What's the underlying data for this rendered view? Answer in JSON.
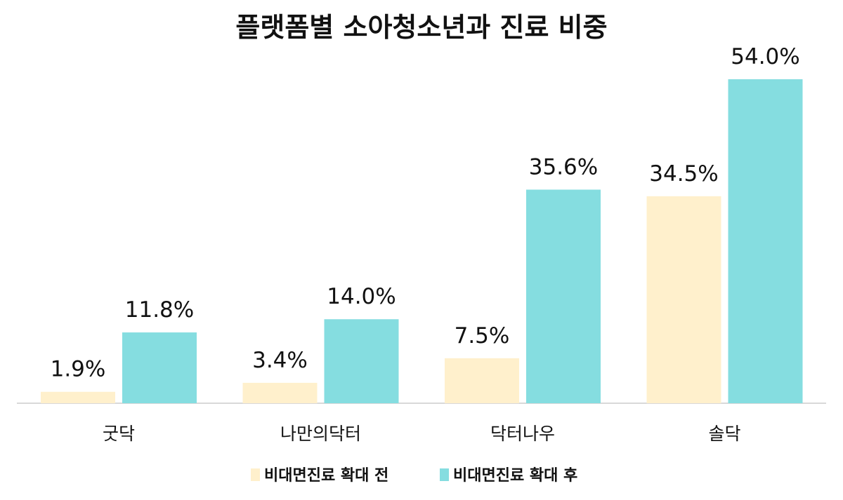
{
  "chart_data": {
    "type": "bar",
    "title": "플랫폼별 소아청소년과 진료 비중",
    "xlabel": "",
    "ylabel": "",
    "categories": [
      "굿닥",
      "나만의닥터",
      "닥터나우",
      "솔닥"
    ],
    "series": [
      {
        "name": "비대면진료 확대 전",
        "values": [
          1.9,
          3.4,
          7.5,
          34.5
        ],
        "labels": [
          "1.9%",
          "3.4%",
          "7.5%",
          "34.5%"
        ],
        "color": "#FFF0CC"
      },
      {
        "name": "비대면진료 확대 후",
        "values": [
          11.8,
          14.0,
          35.6,
          54.0
        ],
        "labels": [
          "11.8%",
          "14.0%",
          "35.6%",
          "54.0%"
        ],
        "color": "#85DDE0"
      }
    ],
    "ylim": [
      0,
      54
    ],
    "grid": false,
    "legend_position": "bottom",
    "axis_color": "#D9D9D9"
  }
}
